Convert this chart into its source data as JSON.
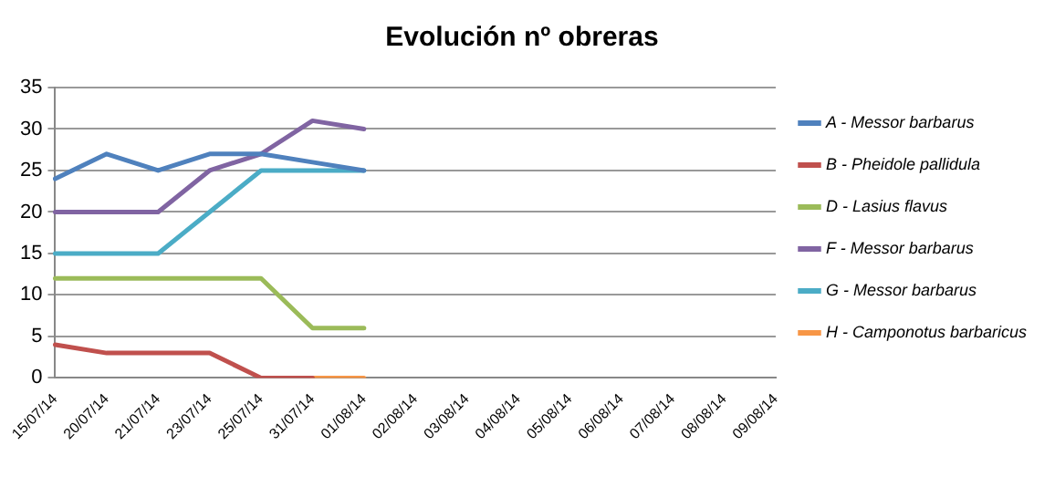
{
  "chart_data": {
    "type": "line",
    "title": "Evolución nº obreras",
    "categories": [
      "15/07/14",
      "20/07/14",
      "21/07/14",
      "23/07/14",
      "25/07/14",
      "31/07/14",
      "01/08/14",
      "02/08/14",
      "03/08/14",
      "04/08/14",
      "05/08/14",
      "06/08/14",
      "07/08/14",
      "08/08/14",
      "09/08/14"
    ],
    "series": [
      {
        "name": "A - Messor barbarus",
        "color": "#4f81bd",
        "values": [
          24,
          27,
          25,
          27,
          27,
          26,
          25,
          null,
          null,
          null,
          null,
          null,
          null,
          null,
          null
        ]
      },
      {
        "name": "B - Pheidole pallidula",
        "color": "#c0504d",
        "values": [
          4,
          3,
          3,
          3,
          0,
          0,
          null,
          null,
          null,
          null,
          null,
          null,
          null,
          null,
          null
        ]
      },
      {
        "name": "D - Lasius flavus",
        "color": "#9bbb59",
        "values": [
          12,
          12,
          12,
          12,
          12,
          6,
          6,
          null,
          null,
          null,
          null,
          null,
          null,
          null,
          null
        ]
      },
      {
        "name": "F - Messor barbarus",
        "color": "#8064a2",
        "values": [
          20,
          20,
          20,
          25,
          27,
          31,
          30,
          null,
          null,
          null,
          null,
          null,
          null,
          null,
          null
        ]
      },
      {
        "name": "G - Messor barbarus",
        "color": "#4bacc6",
        "values": [
          15,
          15,
          15,
          20,
          25,
          25,
          25,
          null,
          null,
          null,
          null,
          null,
          null,
          null,
          null
        ]
      },
      {
        "name": "H - Camponotus barbaricus",
        "color": "#f79646",
        "values": [
          null,
          null,
          null,
          null,
          null,
          0,
          0,
          null,
          null,
          null,
          null,
          null,
          null,
          null,
          null
        ]
      }
    ],
    "ylim": [
      0,
      35
    ],
    "yticks": [
      0,
      5,
      10,
      15,
      20,
      25,
      30,
      35
    ],
    "grid": "y",
    "legend": "right",
    "marker": "none",
    "line_style": "solid"
  }
}
